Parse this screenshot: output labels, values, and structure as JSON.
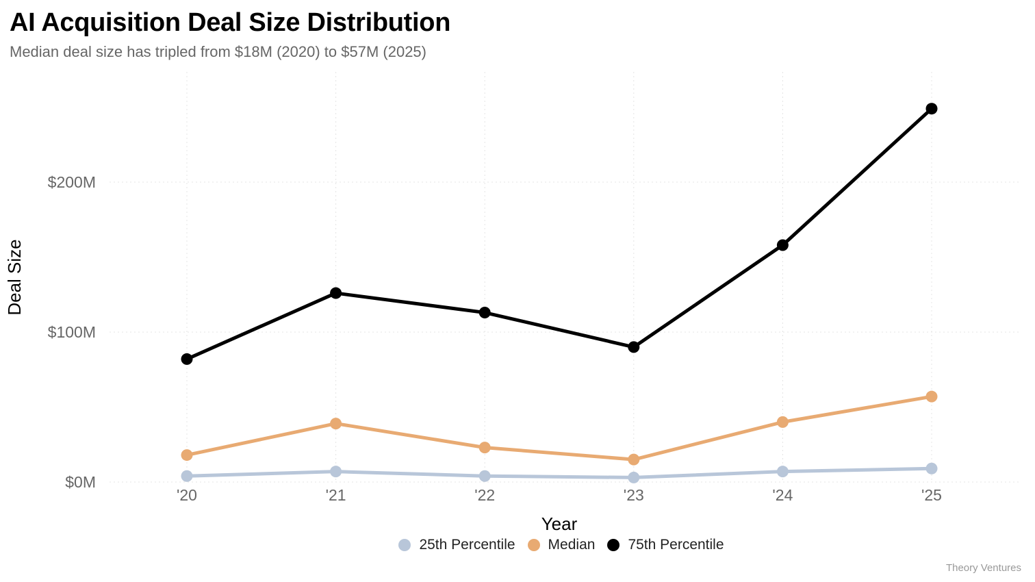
{
  "title": "AI Acquisition Deal Size Distribution",
  "subtitle": "Median deal size has tripled from $18M (2020) to $57M (2025)",
  "footer": "Theory Ventures",
  "chart_data": {
    "type": "line",
    "title": "AI Acquisition Deal Size Distribution",
    "subtitle": "Median deal size has tripled from $18M (2020) to $57M (2025)",
    "xlabel": "Year",
    "ylabel": "Deal Size",
    "categories": [
      "'20",
      "'21",
      "'22",
      "'23",
      "'24",
      "'25"
    ],
    "y_ticks": [
      0,
      100,
      200
    ],
    "y_tick_labels": [
      "$0M",
      "$100M",
      "$200M"
    ],
    "ylim": [
      0,
      250
    ],
    "grid": true,
    "legend_position": "bottom",
    "series": [
      {
        "name": "25th Percentile",
        "color": "#b8c6d9",
        "values": [
          4,
          7,
          4,
          3,
          7,
          9
        ]
      },
      {
        "name": "Median",
        "color": "#e8aa72",
        "values": [
          18,
          39,
          23,
          15,
          40,
          57
        ]
      },
      {
        "name": "75th Percentile",
        "color": "#000000",
        "values": [
          82,
          126,
          113,
          90,
          158,
          249
        ]
      }
    ]
  }
}
